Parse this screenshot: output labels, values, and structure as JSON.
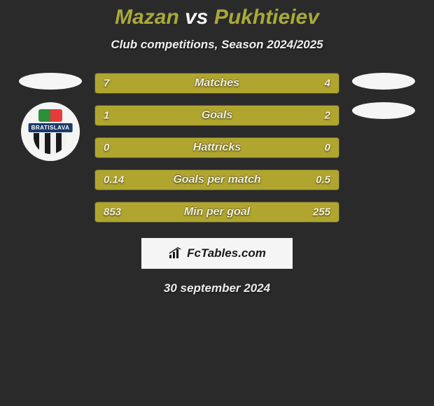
{
  "header": {
    "player1": "Mazan",
    "vs": "vs",
    "player2": "Pukhtieiev",
    "subtitle": "Club competitions, Season 2024/2025",
    "title_fontsize": 30,
    "subtitle_fontsize": 17,
    "player_color": "#a9a93a",
    "vs_color": "#f5f5f5"
  },
  "badge": {
    "label": "BRATISLAVA",
    "text_color": "#ffffff",
    "band_color": "#1a3a6b",
    "flag_left": "#2d8f3a",
    "flag_right": "#e63b3b"
  },
  "colors": {
    "background": "#2a2a2a",
    "bar_left": "#b0a52f",
    "bar_right": "#b0a52f",
    "bar_text": "#f5f2dd",
    "ellipse": "#f5f5f5",
    "footer_bg": "#f5f5f5"
  },
  "bars": {
    "height": 30,
    "gap": 16,
    "label_fontsize": 16,
    "value_fontsize": 15,
    "rows": [
      {
        "label": "Matches",
        "left_val": "7",
        "right_val": "4",
        "left_pct": 63.6,
        "right_pct": 36.4,
        "left_color": "#b0a52f",
        "right_color": "#b0a52f"
      },
      {
        "label": "Goals",
        "left_val": "1",
        "right_val": "2",
        "left_pct": 33.3,
        "right_pct": 66.7,
        "left_color": "#b0a52f",
        "right_color": "#b0a52f"
      },
      {
        "label": "Hattricks",
        "left_val": "0",
        "right_val": "0",
        "left_pct": 50.0,
        "right_pct": 50.0,
        "left_color": "#b0a52f",
        "right_color": "#b0a52f"
      },
      {
        "label": "Goals per match",
        "left_val": "0.14",
        "right_val": "0.5",
        "left_pct": 21.9,
        "right_pct": 78.1,
        "left_color": "#b0a52f",
        "right_color": "#b0a52f"
      },
      {
        "label": "Min per goal",
        "left_val": "853",
        "right_val": "255",
        "left_pct": 77.0,
        "right_pct": 23.0,
        "left_color": "#b0a52f",
        "right_color": "#b0a52f"
      }
    ]
  },
  "footer": {
    "logo_text": "FcTables.com",
    "date": "30 september 2024",
    "date_fontsize": 17
  }
}
